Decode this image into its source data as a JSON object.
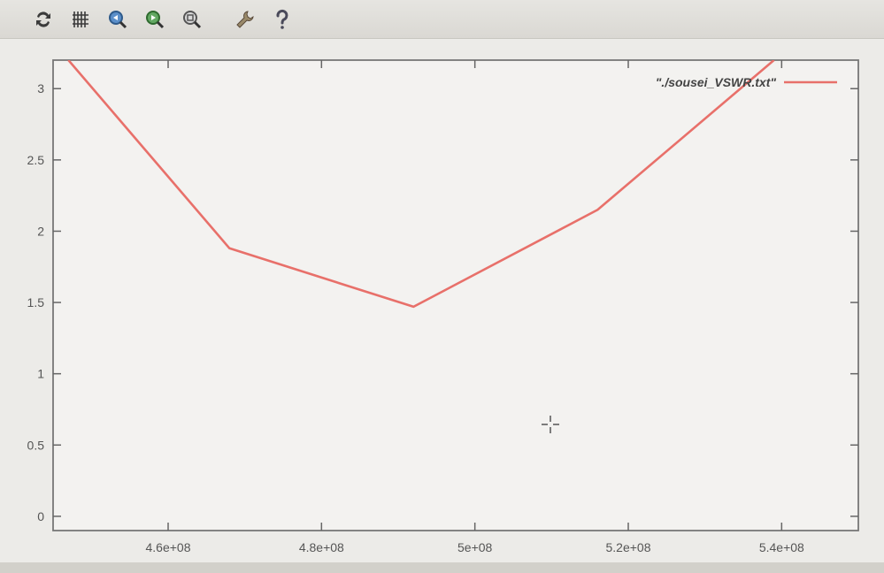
{
  "toolbar": {
    "buttons": [
      {
        "name": "replot-icon",
        "color": "#3b3b3b"
      },
      {
        "name": "grid-icon",
        "color": "#3b3b3b"
      },
      {
        "name": "zoom-prev-icon",
        "color": "#3a6ea5"
      },
      {
        "name": "zoom-next-icon",
        "color": "#3e8b3e"
      },
      {
        "name": "autoscale-icon",
        "color": "#6a6a6a"
      },
      {
        "name": "config-icon",
        "color": "#8a7a5a"
      },
      {
        "name": "help-icon",
        "color": "#4a4a5a"
      }
    ]
  },
  "chart_data": {
    "type": "line",
    "title": "",
    "xlabel": "",
    "ylabel": "",
    "xlim": [
      445000000.0,
      550000000.0
    ],
    "ylim": [
      -0.1,
      3.2
    ],
    "x_ticks": [
      460000000.0,
      480000000.0,
      500000000.0,
      520000000.0,
      540000000.0
    ],
    "x_tick_labels": [
      "4.6e+08",
      "4.8e+08",
      "5e+08",
      "5.2e+08",
      "5.4e+08"
    ],
    "y_ticks": [
      0,
      0.5,
      1,
      1.5,
      2,
      2.5,
      3
    ],
    "y_tick_labels": [
      "0",
      "0.5",
      "1",
      "1.5",
      "2",
      "2.5",
      "3"
    ],
    "grid": false,
    "legend_position": "top-right",
    "series": [
      {
        "name": "\"./sousei_VSWR.txt\"",
        "color": "#e8706a",
        "x": [
          447000000.0,
          468000000.0,
          492000000.0,
          516000000.0,
          539000000.0
        ],
        "y": [
          3.2,
          1.88,
          1.47,
          2.15,
          3.2
        ]
      }
    ]
  }
}
